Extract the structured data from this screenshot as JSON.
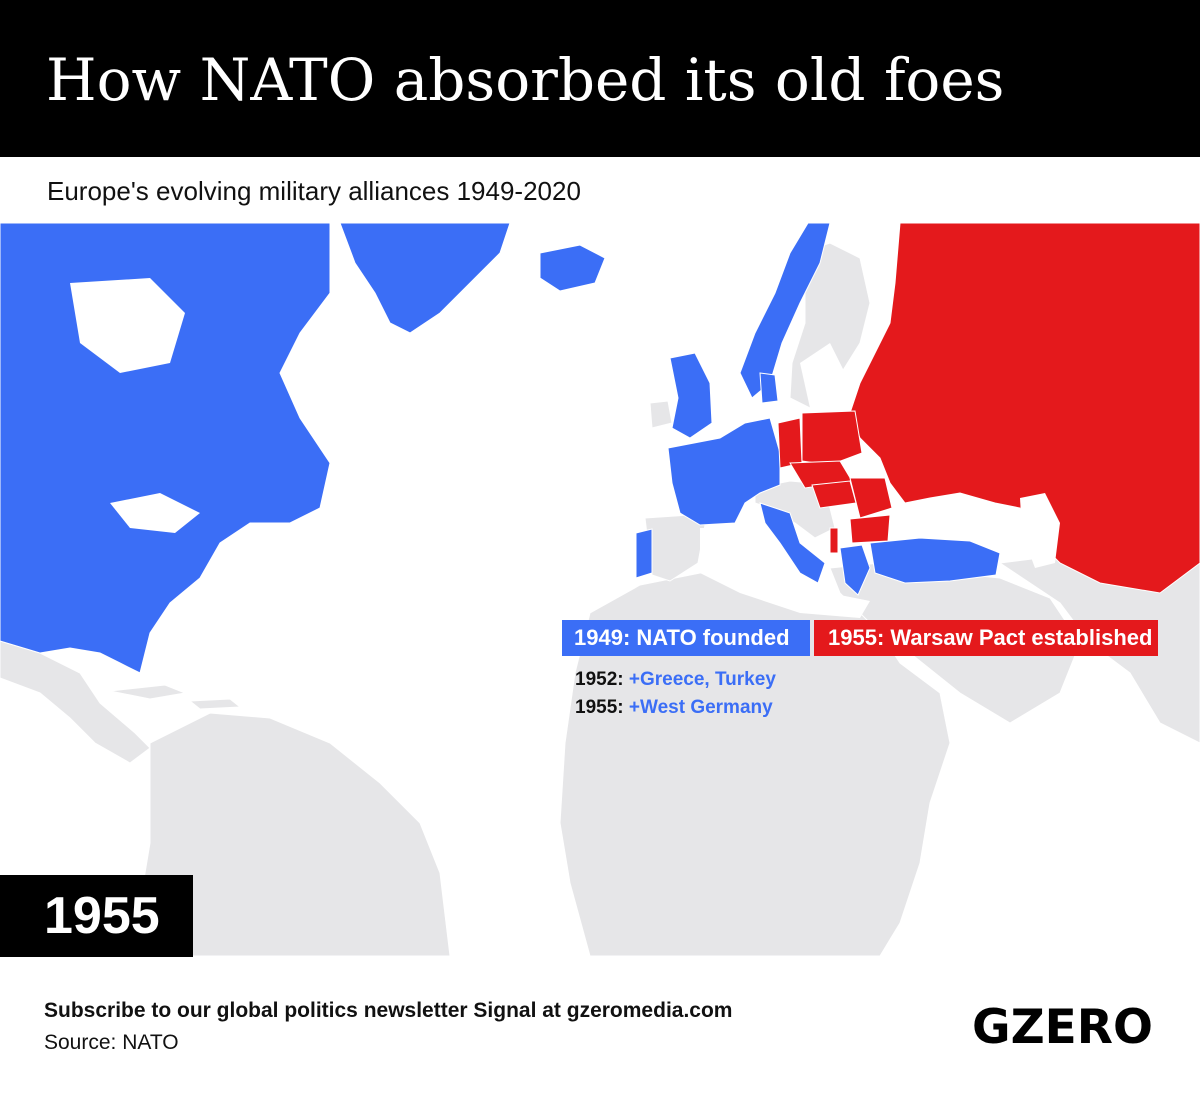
{
  "header": {
    "title": "How NATO absorbed its old foes",
    "subtitle": "Europe's evolving military alliances 1949-2020"
  },
  "colors": {
    "nato": "#3b6ef6",
    "warsaw_pact": "#e4191c",
    "other_land": "#e6e6e8",
    "header_bg": "#000000"
  },
  "legend": {
    "nato_label": "1949: NATO founded",
    "warsaw_label": "1955: Warsaw Pact established"
  },
  "events": [
    {
      "year": "1952:",
      "members": "+Greece, Turkey"
    },
    {
      "year": "1955:",
      "members": "+West Germany"
    }
  ],
  "current_year": "1955",
  "footer": {
    "cta": "Subscribe to our global politics newsletter Signal at gzeromedia.com",
    "source": "Source: NATO",
    "logo": "GZERO"
  }
}
